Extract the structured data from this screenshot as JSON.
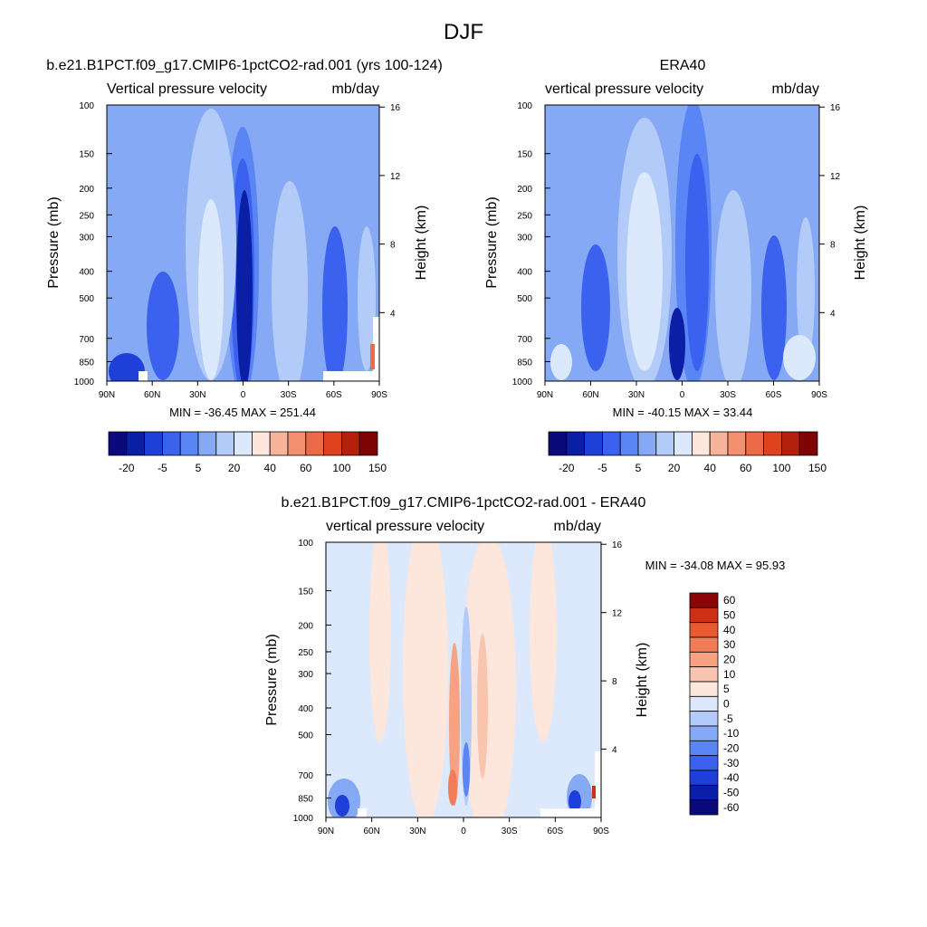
{
  "page_title": "DJF",
  "colors": {
    "main": [
      "#0a0a7a",
      "#0a1fa6",
      "#1e3fd8",
      "#3b62ef",
      "#5a85f4",
      "#86a9f6",
      "#b3cbf8",
      "#dce8fb",
      "#fde7dc",
      "#f8b49a",
      "#f39070",
      "#ec6a45",
      "#e0421e",
      "#b5200d",
      "#7f0505"
    ],
    "diff": [
      "#0a0a7a",
      "#0a1fa6",
      "#1e3fd8",
      "#3b62ef",
      "#5a85f4",
      "#86a9f6",
      "#b3cbf8",
      "#dce8fb",
      "#fde7dc",
      "#fac5ae",
      "#f6a283",
      "#f17d58",
      "#e85a31",
      "#cf2f12",
      "#8a0505"
    ]
  },
  "chart_data": [
    {
      "type": "heatmap",
      "title": "b.e21.B1PCT.f09_g17.CMIP6-1pctCO2-rad.001 (yrs 100-124)",
      "left_subtitle": "Vertical pressure velocity",
      "right_subtitle": "mb/day",
      "ylabel": "Pressure (mb)",
      "ylabel_right": "Height (km)",
      "x_ticks": [
        "90N",
        "60N",
        "30N",
        "0",
        "30S",
        "60S",
        "90S"
      ],
      "y_ticks": [
        100,
        150,
        200,
        250,
        300,
        400,
        500,
        700,
        850,
        1000
      ],
      "y_right_ticks": [
        16,
        12,
        8,
        4
      ],
      "stats": "MIN = -36.45  MAX = 251.44",
      "colorbar_labels": [
        "-20",
        "-5",
        "5",
        "20",
        "40",
        "60",
        "100",
        "150"
      ],
      "palette": "main",
      "value_range": [
        -36.45,
        251.44
      ]
    },
    {
      "type": "heatmap",
      "title": "ERA40",
      "left_subtitle": "vertical pressure velocity",
      "right_subtitle": "mb/day",
      "ylabel": "Pressure (mb)",
      "ylabel_right": "Height (km)",
      "x_ticks": [
        "90N",
        "60N",
        "30N",
        "0",
        "30S",
        "60S",
        "90S"
      ],
      "y_ticks": [
        100,
        150,
        200,
        250,
        300,
        400,
        500,
        700,
        850,
        1000
      ],
      "y_right_ticks": [
        16,
        12,
        8,
        4
      ],
      "stats": "MIN = -40.15  MAX =  33.44",
      "colorbar_labels": [
        "-20",
        "-5",
        "5",
        "20",
        "40",
        "60",
        "100",
        "150"
      ],
      "palette": "main",
      "value_range": [
        -40.15,
        33.44
      ]
    },
    {
      "type": "heatmap",
      "title": "b.e21.B1PCT.f09_g17.CMIP6-1pctCO2-rad.001 - ERA40",
      "left_subtitle": "vertical pressure velocity",
      "right_subtitle": "mb/day",
      "ylabel": "Pressure (mb)",
      "ylabel_right": "Height (km)",
      "x_ticks": [
        "90N",
        "60N",
        "30N",
        "0",
        "30S",
        "60S",
        "90S"
      ],
      "y_ticks": [
        100,
        150,
        200,
        250,
        300,
        400,
        500,
        700,
        850,
        1000
      ],
      "y_right_ticks": [
        16,
        12,
        8,
        4
      ],
      "stats": "MIN = -34.08  MAX =  95.93",
      "colorbar_labels": [
        "60",
        "50",
        "40",
        "30",
        "20",
        "10",
        "5",
        "0",
        "-5",
        "-10",
        "-20",
        "-30",
        "-40",
        "-50",
        "-60"
      ],
      "palette": "diff",
      "value_range": [
        -34.08,
        95.93
      ]
    }
  ]
}
